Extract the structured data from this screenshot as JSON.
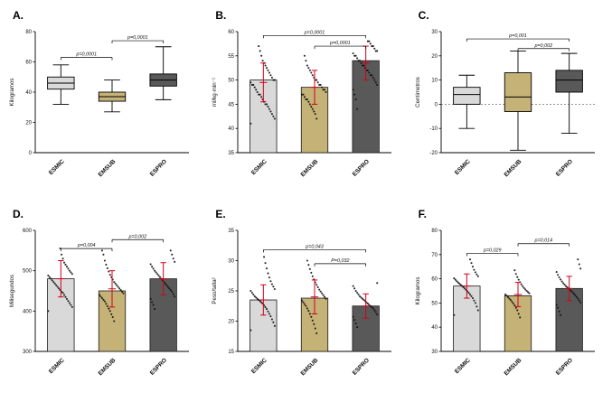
{
  "figure": {
    "background": "#ffffff"
  },
  "groups": [
    "ESMIC",
    "EMSUB",
    "ESPRO"
  ],
  "group_colors": [
    "#d9d9d9",
    "#c5b277",
    "#595959"
  ],
  "accent_colors": {
    "error_bar": "#d0021b",
    "dots": "#111111",
    "axis": "#000000"
  },
  "chart_data": [
    {
      "panel_label": "A.",
      "type": "box",
      "title": "",
      "ylabel": "Kilogramos",
      "ylim": [
        0,
        80
      ],
      "yticks": [
        0,
        20,
        40,
        60,
        80
      ],
      "categories": [
        "ESMIC",
        "EMSUB",
        "ESPRO"
      ],
      "boxes": [
        {
          "min": 32,
          "q1": 42,
          "median": 46,
          "q3": 50,
          "max": 58
        },
        {
          "min": 27,
          "q1": 34,
          "median": 37,
          "q3": 40,
          "max": 48
        },
        {
          "min": 35,
          "q1": 44,
          "median": 48,
          "q3": 52,
          "max": 70
        }
      ],
      "brackets": [
        {
          "from": 0,
          "to": 1,
          "y": 63,
          "label": "p=0,0001"
        },
        {
          "from": 1,
          "to": 2,
          "y": 74,
          "label": "p=0,0001"
        }
      ]
    },
    {
      "panel_label": "B.",
      "type": "bar",
      "title": "",
      "ylabel": "ml/kg·min⁻¹",
      "ylim": [
        35,
        60
      ],
      "yticks": [
        35,
        40,
        45,
        50,
        55,
        60
      ],
      "categories": [
        "ESMIC",
        "EMSUB",
        "ESPRO"
      ],
      "bars": [
        50,
        48.5,
        54
      ],
      "mean": [
        49.5,
        48.5,
        53.5
      ],
      "sd": [
        4,
        3.5,
        3.5
      ],
      "points": [
        [
          41,
          42,
          42.5,
          43,
          43.5,
          44,
          44.5,
          45,
          45,
          45.5,
          46,
          46.5,
          47,
          47,
          47.5,
          48,
          48.5,
          49,
          49,
          49.5,
          50,
          50,
          50.5,
          51,
          51.5,
          52,
          52.5,
          53,
          53.5,
          54,
          55,
          56,
          57
        ],
        [
          42,
          43,
          43.5,
          44,
          44.5,
          45,
          45.5,
          46,
          46,
          46.5,
          47,
          47,
          47.5,
          48,
          48,
          48.5,
          49,
          49,
          49.5,
          50,
          50,
          50.5,
          51,
          51.5,
          52,
          52.5,
          53,
          54,
          55
        ],
        [
          44,
          46,
          47,
          48,
          49,
          49.5,
          50,
          50.5,
          51,
          51,
          51.5,
          52,
          52,
          52.5,
          53,
          53,
          53.5,
          54,
          54,
          54.5,
          55,
          55,
          55.5,
          56,
          56,
          56.5,
          57,
          57,
          57.5,
          58,
          58
        ]
      ],
      "brackets": [
        {
          "from": 0,
          "to": 2,
          "y": 59.2,
          "label": "p=0,0001"
        },
        {
          "from": 1,
          "to": 2,
          "y": 57,
          "label": "p=0,0001"
        }
      ]
    },
    {
      "panel_label": "C.",
      "type": "box",
      "title": "",
      "ylabel": "Centímetros",
      "ylim": [
        -20,
        30
      ],
      "yticks": [
        -20,
        -10,
        0,
        10,
        20,
        30
      ],
      "zero_line": true,
      "categories": [
        "ESMIC",
        "EMSUB",
        "ESPRO"
      ],
      "boxes": [
        {
          "min": -10,
          "q1": 0,
          "median": 4,
          "q3": 7,
          "max": 12
        },
        {
          "min": -19,
          "q1": -3,
          "median": 3,
          "q3": 13,
          "max": 22
        },
        {
          "min": -12,
          "q1": 5,
          "median": 10,
          "q3": 14,
          "max": 21
        }
      ],
      "brackets": [
        {
          "from": 0,
          "to": 2,
          "y": 27,
          "label": "p=0,001"
        },
        {
          "from": 1,
          "to": 2,
          "y": 23,
          "label": "p=0,002"
        }
      ]
    },
    {
      "panel_label": "D.",
      "type": "bar",
      "title": "",
      "ylabel": "Milisegundos",
      "ylim": [
        300,
        600
      ],
      "yticks": [
        300,
        400,
        500,
        600
      ],
      "categories": [
        "ESMIC",
        "EMSUB",
        "ESPRO"
      ],
      "bars": [
        480,
        450,
        480
      ],
      "mean": [
        480,
        455,
        480
      ],
      "sd": [
        45,
        45,
        40
      ],
      "points": [
        [
          400,
          410,
          415,
          420,
          425,
          430,
          435,
          440,
          445,
          448,
          452,
          456,
          460,
          464,
          468,
          472,
          476,
          480,
          484,
          488,
          492,
          496,
          500,
          505,
          510,
          515,
          520,
          530,
          540,
          555
        ],
        [
          375,
          385,
          392,
          400,
          406,
          412,
          418,
          424,
          428,
          432,
          436,
          440,
          444,
          448,
          452,
          456,
          460,
          464,
          468,
          472,
          478,
          484,
          490,
          498,
          506,
          515,
          525,
          540,
          550
        ],
        [
          405,
          415,
          422,
          430,
          436,
          442,
          448,
          452,
          456,
          460,
          464,
          468,
          472,
          476,
          480,
          484,
          488,
          492,
          496,
          500,
          505,
          510,
          516,
          522,
          530,
          540,
          550
        ]
      ],
      "brackets": [
        {
          "from": 0,
          "to": 1,
          "y": 555,
          "label": "p=0,004"
        },
        {
          "from": 1,
          "to": 2,
          "y": 577,
          "label": "p=0,002"
        }
      ]
    },
    {
      "panel_label": "E.",
      "type": "bar",
      "title": "",
      "ylabel": "Peso/talla²",
      "ylim": [
        15,
        35
      ],
      "yticks": [
        15,
        20,
        25,
        30,
        35
      ],
      "categories": [
        "ESMIC",
        "EMSUB",
        "ESPRO"
      ],
      "bars": [
        23.5,
        23.8,
        22.5
      ],
      "mean": [
        23.5,
        24,
        22.5
      ],
      "sd": [
        2.5,
        2.8,
        2
      ],
      "points": [
        [
          18.5,
          19.2,
          19.8,
          20.3,
          20.8,
          21.2,
          21.6,
          22,
          22.3,
          22.6,
          22.9,
          23.1,
          23.3,
          23.5,
          23.7,
          23.9,
          24.1,
          24.4,
          24.7,
          25,
          25.3,
          25.7,
          26.1,
          26.6,
          27.2,
          27.9,
          28.7,
          29.6,
          30.6
        ],
        [
          18,
          18.8,
          19.5,
          20.1,
          20.7,
          21.2,
          21.7,
          22.1,
          22.5,
          22.8,
          23.1,
          23.4,
          23.7,
          24,
          24.3,
          24.6,
          24.9,
          25.2,
          25.6,
          26,
          26.4,
          26.9,
          27.4,
          28,
          28.6,
          29.3,
          30
        ],
        [
          19,
          19.6,
          20.2,
          20.7,
          21.1,
          21.5,
          21.8,
          22.1,
          22.3,
          22.5,
          22.7,
          22.9,
          23.1,
          23.3,
          23.5,
          23.7,
          23.9,
          24.1,
          24.4,
          24.7,
          25,
          25.4,
          25.8,
          26.3
        ]
      ],
      "brackets": [
        {
          "from": 0,
          "to": 2,
          "y": 31.8,
          "label": "p=0,043"
        },
        {
          "from": 1,
          "to": 2,
          "y": 29.5,
          "label": "P=0,032"
        }
      ]
    },
    {
      "panel_label": "F.",
      "type": "bar",
      "title": "",
      "ylabel": "Kilogramos",
      "ylim": [
        30,
        80
      ],
      "yticks": [
        30,
        40,
        50,
        60,
        70,
        80
      ],
      "categories": [
        "ESMIC",
        "EMSUB",
        "ESPRO"
      ],
      "bars": [
        57,
        53,
        56
      ],
      "mean": [
        57,
        53.5,
        56
      ],
      "sd": [
        5,
        5,
        5
      ],
      "points": [
        [
          45,
          47,
          48.5,
          50,
          51,
          52,
          52.8,
          53.5,
          54.2,
          54.8,
          55.4,
          56,
          56.5,
          57,
          57.5,
          58,
          58.5,
          59,
          59.6,
          60.2,
          61,
          61.8,
          62.7,
          63.7,
          65,
          66.5,
          68
        ],
        [
          44,
          45.5,
          47,
          48,
          49,
          49.8,
          50.5,
          51.2,
          51.8,
          52.4,
          53,
          53.5,
          54,
          54.5,
          55,
          55.6,
          56.2,
          56.9,
          57.7,
          58.6,
          59.6,
          60.7,
          62,
          63.5
        ],
        [
          45,
          46.5,
          48,
          49.2,
          50.2,
          51,
          51.8,
          52.5,
          53.2,
          53.8,
          54.4,
          55,
          55.5,
          56,
          56.5,
          57,
          57.6,
          58.2,
          58.9,
          59.7,
          60.6,
          61.6,
          62.8,
          64.2,
          66,
          68
        ]
      ],
      "brackets": [
        {
          "from": 0,
          "to": 1,
          "y": 70.5,
          "label": "p=0,029"
        },
        {
          "from": 1,
          "to": 2,
          "y": 74.5,
          "label": "p=0,014"
        }
      ]
    }
  ]
}
